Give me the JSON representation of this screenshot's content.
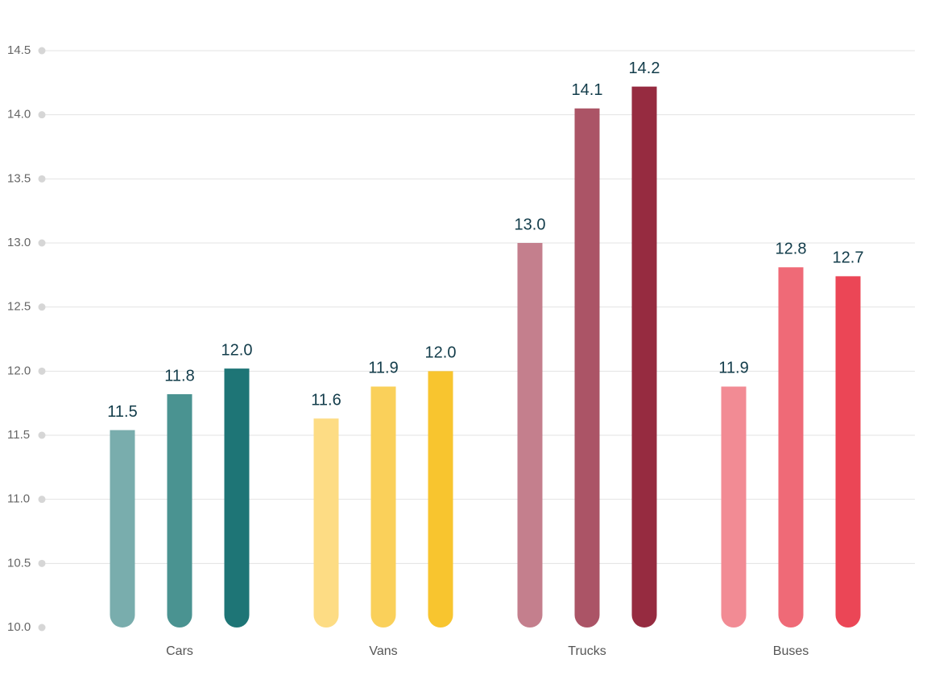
{
  "chart_data": {
    "type": "bar",
    "title": "",
    "xlabel": "",
    "ylabel": "",
    "ylim": [
      10.0,
      14.5
    ],
    "yticks": [
      "10.0",
      "10.5",
      "11.0",
      "11.5",
      "12.0",
      "12.5",
      "13.0",
      "13.5",
      "14.0",
      "14.5"
    ],
    "grid": true,
    "legend": "none",
    "groups": [
      {
        "category": "Cars",
        "bars": [
          {
            "value": 11.54,
            "label": "11.5",
            "color": "#79adad"
          },
          {
            "value": 11.82,
            "label": "11.8",
            "color": "#4a9391"
          },
          {
            "value": 12.02,
            "label": "12.0",
            "color": "#1e7576"
          }
        ]
      },
      {
        "category": "Vans",
        "bars": [
          {
            "value": 11.63,
            "label": "11.6",
            "color": "#fddc84"
          },
          {
            "value": 11.88,
            "label": "11.9",
            "color": "#fad05a"
          },
          {
            "value": 12.0,
            "label": "12.0",
            "color": "#f8c52f"
          }
        ]
      },
      {
        "category": "Trucks",
        "bars": [
          {
            "value": 13.0,
            "label": "13.0",
            "color": "#c47f8d"
          },
          {
            "value": 14.05,
            "label": "14.1",
            "color": "#ab5466"
          },
          {
            "value": 14.22,
            "label": "14.2",
            "color": "#962b40"
          }
        ]
      },
      {
        "category": "Buses",
        "bars": [
          {
            "value": 11.88,
            "label": "11.9",
            "color": "#f28b94"
          },
          {
            "value": 12.81,
            "label": "12.8",
            "color": "#ef6a77"
          },
          {
            "value": 12.74,
            "label": "12.7",
            "color": "#eb4656"
          }
        ]
      }
    ]
  }
}
